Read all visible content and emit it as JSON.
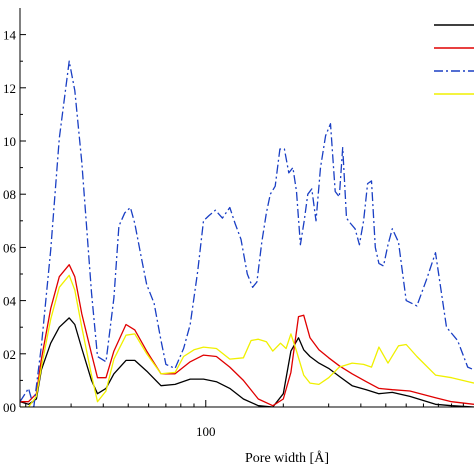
{
  "chart_data": {
    "type": "line",
    "xlabel": "Pore width [Å]",
    "ylabel": "",
    "x_scale": "log",
    "xlim": [
      19,
      1100
    ],
    "ylim": [
      0.0,
      0.15
    ],
    "x_tick_labels": [
      {
        "value": 100,
        "label": "100"
      }
    ],
    "y_tick_labels": [
      {
        "value": 0.0,
        "label": "00"
      },
      {
        "value": 0.02,
        "label": "02"
      },
      {
        "value": 0.04,
        "label": "04"
      },
      {
        "value": 0.06,
        "label": "06"
      },
      {
        "value": 0.08,
        "label": "08"
      },
      {
        "value": 0.1,
        "label": "10"
      },
      {
        "value": 0.12,
        "label": "12"
      },
      {
        "value": 0.14,
        "label": "14"
      }
    ],
    "grid": false,
    "legend": {
      "placement": "top-right",
      "entries": [
        {
          "color": "#000000",
          "style": "solid"
        },
        {
          "color": "#e00000",
          "style": "solid"
        },
        {
          "color": "#1a3fc4",
          "style": "dash-dot"
        },
        {
          "color": "#f0f000",
          "style": "solid"
        }
      ]
    },
    "series": [
      {
        "color": "#000000",
        "style": "solid",
        "x": [
          19,
          20.5,
          22,
          23,
          25,
          27,
          29.5,
          31,
          33,
          36,
          38,
          41,
          44,
          49,
          53,
          59,
          67,
          76,
          87,
          98,
          110,
          124,
          140,
          160,
          182,
          200,
          214,
          229,
          240,
          254,
          275,
          300,
          330,
          370,
          420,
          470,
          530,
          620,
          780,
          900,
          1100
        ],
        "y": [
          0.002,
          0.001,
          0.003,
          0.014,
          0.024,
          0.03,
          0.0335,
          0.031,
          0.022,
          0.01,
          0.005,
          0.007,
          0.0125,
          0.0175,
          0.0175,
          0.0135,
          0.008,
          0.0085,
          0.0105,
          0.0105,
          0.0095,
          0.007,
          0.003,
          0.0005,
          0.0,
          0.005,
          0.021,
          0.026,
          0.0215,
          0.019,
          0.0165,
          0.0145,
          0.0115,
          0.008,
          0.0065,
          0.005,
          0.0055,
          0.004,
          0.001,
          0.0005,
          0.0
        ]
      },
      {
        "color": "#e00000",
        "style": "solid",
        "x": [
          19,
          20.5,
          22,
          23,
          25,
          27,
          29.5,
          31,
          33,
          36,
          38,
          41,
          44,
          49,
          53,
          59,
          67,
          76,
          87,
          98,
          110,
          124,
          140,
          160,
          182,
          200,
          214,
          229,
          240,
          254,
          275,
          300,
          330,
          370,
          420,
          470,
          530,
          620,
          780,
          900,
          1100
        ],
        "y": [
          0.002,
          0.002,
          0.005,
          0.018,
          0.037,
          0.049,
          0.0535,
          0.049,
          0.035,
          0.02,
          0.011,
          0.011,
          0.021,
          0.031,
          0.029,
          0.021,
          0.0125,
          0.0125,
          0.017,
          0.0195,
          0.019,
          0.015,
          0.01,
          0.003,
          0.0005,
          0.003,
          0.013,
          0.034,
          0.0345,
          0.026,
          0.0215,
          0.0185,
          0.0155,
          0.0125,
          0.0095,
          0.007,
          0.0065,
          0.006,
          0.0035,
          0.002,
          0.001
        ]
      },
      {
        "color": "#1a3fc4",
        "style": "dash-dot",
        "x": [
          19,
          20.5,
          21.5,
          23,
          25,
          27,
          29.5,
          31,
          33,
          36,
          38,
          41,
          44,
          46,
          48.5,
          51,
          53,
          56,
          59,
          63,
          67,
          70,
          76,
          82,
          87,
          93,
          98,
          103,
          109,
          116,
          124,
          130,
          137,
          145,
          152,
          158,
          165,
          172,
          178,
          186,
          194,
          202,
          210,
          218,
          225,
          233,
          241,
          249,
          258,
          268,
          279,
          292,
          305,
          318,
          330,
          340,
          352,
          365,
          380,
          395,
          410,
          425,
          440,
          455,
          470,
          490,
          510,
          530,
          560,
          600,
          660,
          720,
          780,
          860,
          950,
          1040,
          1100
        ],
        "y": [
          0.002,
          0.007,
          0.0,
          0.023,
          0.059,
          0.101,
          0.13,
          0.119,
          0.092,
          0.043,
          0.019,
          0.017,
          0.041,
          0.068,
          0.073,
          0.075,
          0.069,
          0.057,
          0.046,
          0.039,
          0.025,
          0.016,
          0.0145,
          0.022,
          0.031,
          0.051,
          0.07,
          0.072,
          0.074,
          0.071,
          0.075,
          0.069,
          0.063,
          0.05,
          0.045,
          0.047,
          0.062,
          0.073,
          0.08,
          0.083,
          0.097,
          0.097,
          0.088,
          0.09,
          0.081,
          0.061,
          0.07,
          0.08,
          0.082,
          0.07,
          0.09,
          0.102,
          0.1065,
          0.081,
          0.079,
          0.0975,
          0.071,
          0.069,
          0.067,
          0.061,
          0.07,
          0.084,
          0.085,
          0.06,
          0.054,
          0.053,
          0.061,
          0.067,
          0.062,
          0.04,
          0.038,
          0.048,
          0.058,
          0.03,
          0.025,
          0.015,
          0.014
        ]
      },
      {
        "color": "#f0f000",
        "style": "solid",
        "x": [
          19,
          20.5,
          22,
          23,
          25,
          27,
          29.5,
          31,
          33,
          36,
          38,
          41,
          44,
          49,
          53,
          59,
          67,
          76,
          82,
          90,
          98,
          110,
          124,
          140,
          150,
          160,
          172,
          182,
          195,
          205,
          214,
          225,
          240,
          254,
          275,
          300,
          330,
          370,
          410,
          440,
          470,
          510,
          560,
          600,
          660,
          780,
          900,
          1100
        ],
        "y": [
          0.0,
          0.0,
          0.004,
          0.015,
          0.033,
          0.045,
          0.0495,
          0.044,
          0.03,
          0.012,
          0.002,
          0.006,
          0.018,
          0.027,
          0.0275,
          0.02,
          0.0125,
          0.013,
          0.019,
          0.0215,
          0.0225,
          0.022,
          0.018,
          0.0185,
          0.025,
          0.0255,
          0.0245,
          0.021,
          0.024,
          0.022,
          0.0275,
          0.021,
          0.012,
          0.009,
          0.0085,
          0.011,
          0.015,
          0.0165,
          0.016,
          0.015,
          0.0225,
          0.0165,
          0.023,
          0.0235,
          0.019,
          0.012,
          0.011,
          0.009
        ]
      }
    ]
  }
}
